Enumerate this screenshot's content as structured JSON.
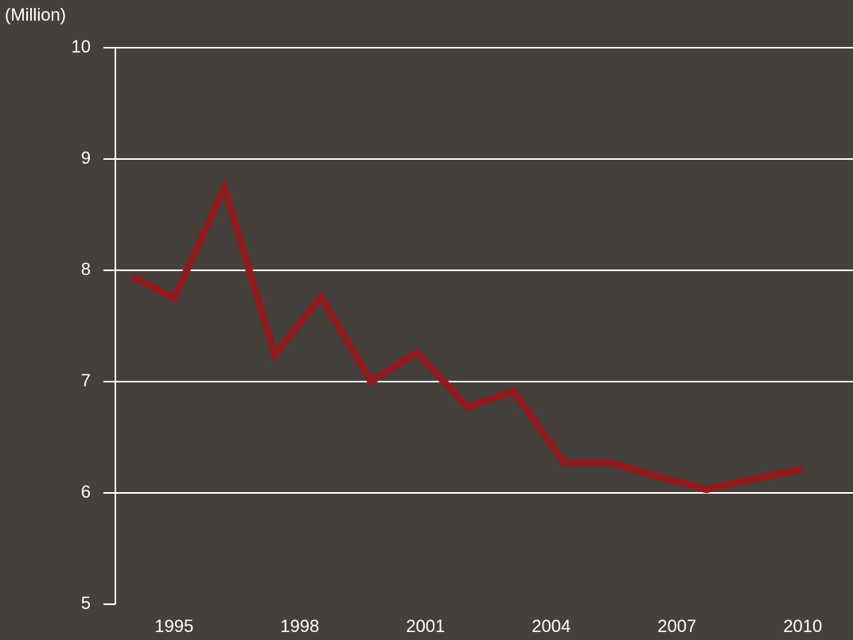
{
  "chart_data": {
    "type": "line",
    "y_label": "(Million)",
    "x": [
      1994.0,
      1995.0,
      1996.2,
      1997.4,
      1998.5,
      1999.7,
      2000.8,
      2002.0,
      2003.1,
      2004.3,
      2005.4,
      2006.6,
      2007.7,
      2008.9,
      2010.0
    ],
    "series": [
      {
        "color": "#8e1b1f",
        "values": [
          7.94,
          7.75,
          8.74,
          7.24,
          7.76,
          7.0,
          7.26,
          6.77,
          6.91,
          6.27,
          6.27,
          6.14,
          6.03,
          6.13,
          6.21
        ]
      }
    ],
    "xlim": [
      1993.6,
      2011.2
    ],
    "xticks": [
      1995,
      1998,
      2001,
      2004,
      2007,
      2010
    ],
    "ylim": [
      5,
      10
    ],
    "yticks": [
      5,
      6,
      7,
      8,
      9,
      10
    ],
    "grid": true
  }
}
